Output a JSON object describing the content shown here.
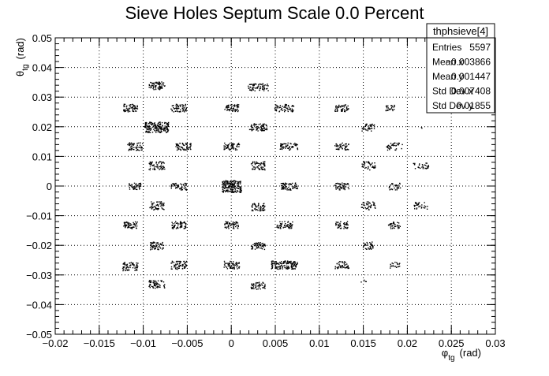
{
  "chart_data": {
    "type": "scatter",
    "title": "Sieve Holes Septum Scale 0.0 Percent",
    "xlabel_main": "φ",
    "xlabel_sub": "tg",
    "xlabel_unit": "(rad)",
    "ylabel_main": "θ",
    "ylabel_sub": "tg",
    "ylabel_unit": "(rad)",
    "xlim": [
      -0.02,
      0.03
    ],
    "ylim": [
      -0.05,
      0.05
    ],
    "x_major_ticks": [
      -0.02,
      -0.015,
      -0.01,
      -0.005,
      0,
      0.005,
      0.01,
      0.015,
      0.02,
      0.025,
      0.03
    ],
    "x_tick_labels": [
      "−0.02",
      "−0.015",
      "−0.01",
      "−0.005",
      "0",
      "0.005",
      "0.01",
      "0.015",
      "0.02",
      "0.025",
      "0.03"
    ],
    "y_major_ticks": [
      -0.05,
      -0.04,
      -0.03,
      -0.02,
      -0.01,
      0,
      0.01,
      0.02,
      0.03,
      0.04,
      0.05
    ],
    "y_tick_labels": [
      "−0.05",
      "−0.04",
      "−0.03",
      "−0.02",
      "−0.01",
      "0",
      "0.01",
      "0.02",
      "0.03",
      "0.04",
      "0.05"
    ],
    "grid": true,
    "legend_position": "top-right",
    "clusters": [
      {
        "x": -0.0085,
        "y": 0.034,
        "w": 0.0009,
        "h": 0.0013,
        "n": 70
      },
      {
        "x": 0.003,
        "y": 0.0335,
        "w": 0.0012,
        "h": 0.0012,
        "n": 70
      },
      {
        "x": -0.0115,
        "y": 0.0265,
        "w": 0.0008,
        "h": 0.0013,
        "n": 60
      },
      {
        "x": -0.006,
        "y": 0.0265,
        "w": 0.0009,
        "h": 0.0013,
        "n": 60
      },
      {
        "x": 0.0,
        "y": 0.0265,
        "w": 0.0008,
        "h": 0.0012,
        "n": 60
      },
      {
        "x": 0.006,
        "y": 0.0265,
        "w": 0.0011,
        "h": 0.0013,
        "n": 60
      },
      {
        "x": 0.0125,
        "y": 0.0265,
        "w": 0.0008,
        "h": 0.0012,
        "n": 50
      },
      {
        "x": 0.018,
        "y": 0.0265,
        "w": 0.0005,
        "h": 0.001,
        "n": 25
      },
      {
        "x": -0.0085,
        "y": 0.02,
        "w": 0.0014,
        "h": 0.0018,
        "n": 180
      },
      {
        "x": 0.003,
        "y": 0.02,
        "w": 0.001,
        "h": 0.0012,
        "n": 70
      },
      {
        "x": 0.0155,
        "y": 0.02,
        "w": 0.0007,
        "h": 0.0013,
        "n": 40
      },
      {
        "x": 0.0215,
        "y": 0.02,
        "w": 0.0001,
        "h": 0.0003,
        "n": 2
      },
      {
        "x": -0.011,
        "y": 0.0135,
        "w": 0.0009,
        "h": 0.0013,
        "n": 60
      },
      {
        "x": -0.0055,
        "y": 0.0135,
        "w": 0.0009,
        "h": 0.0012,
        "n": 60
      },
      {
        "x": 0.0,
        "y": 0.0135,
        "w": 0.0009,
        "h": 0.0012,
        "n": 60
      },
      {
        "x": 0.0065,
        "y": 0.0135,
        "w": 0.001,
        "h": 0.0012,
        "n": 60
      },
      {
        "x": 0.0125,
        "y": 0.0135,
        "w": 0.0008,
        "h": 0.0012,
        "n": 45
      },
      {
        "x": 0.0185,
        "y": 0.0135,
        "w": 0.0009,
        "h": 0.0012,
        "n": 40
      },
      {
        "x": -0.0085,
        "y": 0.007,
        "w": 0.0009,
        "h": 0.0014,
        "n": 60
      },
      {
        "x": 0.003,
        "y": 0.007,
        "w": 0.0008,
        "h": 0.0014,
        "n": 55
      },
      {
        "x": 0.0155,
        "y": 0.007,
        "w": 0.0008,
        "h": 0.0014,
        "n": 40
      },
      {
        "x": 0.0215,
        "y": 0.007,
        "w": 0.0009,
        "h": 0.0011,
        "n": 30
      },
      {
        "x": -0.011,
        "y": 0.0,
        "w": 0.0007,
        "h": 0.0012,
        "n": 45
      },
      {
        "x": -0.006,
        "y": 0.0,
        "w": 0.0009,
        "h": 0.0012,
        "n": 55
      },
      {
        "x": 0.0,
        "y": 0.0,
        "w": 0.0011,
        "h": 0.002,
        "n": 180
      },
      {
        "x": 0.0065,
        "y": 0.0,
        "w": 0.001,
        "h": 0.0012,
        "n": 65
      },
      {
        "x": 0.0125,
        "y": 0.0,
        "w": 0.0008,
        "h": 0.0012,
        "n": 50
      },
      {
        "x": 0.0185,
        "y": 0.0,
        "w": 0.0007,
        "h": 0.0012,
        "n": 30
      },
      {
        "x": -0.0085,
        "y": -0.0065,
        "w": 0.0008,
        "h": 0.0014,
        "n": 55
      },
      {
        "x": 0.003,
        "y": -0.007,
        "w": 0.0008,
        "h": 0.0013,
        "n": 55
      },
      {
        "x": 0.0155,
        "y": -0.0065,
        "w": 0.0008,
        "h": 0.0014,
        "n": 40
      },
      {
        "x": 0.0215,
        "y": -0.0065,
        "w": 0.0008,
        "h": 0.0012,
        "n": 30
      },
      {
        "x": -0.0115,
        "y": -0.013,
        "w": 0.0008,
        "h": 0.0012,
        "n": 60
      },
      {
        "x": -0.006,
        "y": -0.013,
        "w": 0.0008,
        "h": 0.0012,
        "n": 60
      },
      {
        "x": 0.0,
        "y": -0.013,
        "w": 0.0008,
        "h": 0.0012,
        "n": 55
      },
      {
        "x": 0.006,
        "y": -0.013,
        "w": 0.0009,
        "h": 0.0012,
        "n": 55
      },
      {
        "x": 0.0125,
        "y": -0.013,
        "w": 0.0007,
        "h": 0.0012,
        "n": 45
      },
      {
        "x": 0.0185,
        "y": -0.013,
        "w": 0.0007,
        "h": 0.0012,
        "n": 35
      },
      {
        "x": -0.0085,
        "y": -0.02,
        "w": 0.0008,
        "h": 0.0013,
        "n": 55
      },
      {
        "x": 0.003,
        "y": -0.02,
        "w": 0.0008,
        "h": 0.0012,
        "n": 55
      },
      {
        "x": 0.0155,
        "y": -0.02,
        "w": 0.0006,
        "h": 0.0013,
        "n": 35
      },
      {
        "x": -0.0115,
        "y": -0.027,
        "w": 0.0009,
        "h": 0.0014,
        "n": 65
      },
      {
        "x": -0.006,
        "y": -0.0265,
        "w": 0.0009,
        "h": 0.0014,
        "n": 65
      },
      {
        "x": 0.0,
        "y": -0.0265,
        "w": 0.0009,
        "h": 0.0013,
        "n": 60
      },
      {
        "x": 0.006,
        "y": -0.0265,
        "w": 0.0015,
        "h": 0.0014,
        "n": 140
      },
      {
        "x": 0.0125,
        "y": -0.0265,
        "w": 0.0008,
        "h": 0.0012,
        "n": 45
      },
      {
        "x": 0.0185,
        "y": -0.0265,
        "w": 0.0006,
        "h": 0.001,
        "n": 20
      },
      {
        "x": -0.0085,
        "y": -0.033,
        "w": 0.0009,
        "h": 0.0013,
        "n": 60
      },
      {
        "x": 0.003,
        "y": -0.0335,
        "w": 0.0008,
        "h": 0.0012,
        "n": 55
      },
      {
        "x": 0.015,
        "y": -0.032,
        "w": 0.0003,
        "h": 0.0006,
        "n": 4
      }
    ]
  },
  "stats_box": {
    "title": "thphsieve[4]",
    "rows": [
      {
        "label": "Entries",
        "value": "5597"
      },
      {
        "label": "Mean x",
        "value": "−0.003866"
      },
      {
        "label": "Mean y",
        "value": "0.001447"
      },
      {
        "label": "Std Dev x",
        "value": "0.007408"
      },
      {
        "label": "Std Dev y",
        "value": "0.01855"
      }
    ]
  }
}
